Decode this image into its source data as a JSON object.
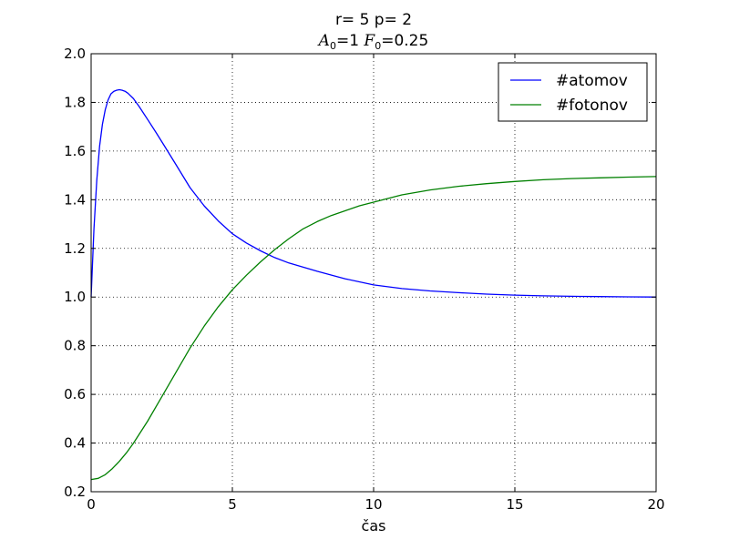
{
  "chart_data": {
    "type": "line",
    "title": "r= 5  p= 2",
    "subtitle": {
      "a_symbol": "A",
      "a_sub": "0",
      "a_rest": "=1 ",
      "f_symbol": "F",
      "f_sub": "0",
      "f_rest": "=0.25"
    },
    "xlabel": "čas",
    "ylabel": "",
    "xlim": [
      0,
      20
    ],
    "ylim": [
      0.2,
      2.0
    ],
    "x_ticks": [
      0,
      5,
      10,
      15,
      20
    ],
    "x_tick_labels": [
      "0",
      "5",
      "10",
      "15",
      "20"
    ],
    "y_ticks": [
      0.2,
      0.4,
      0.6,
      0.8,
      1.0,
      1.2,
      1.4,
      1.6,
      1.8,
      2.0
    ],
    "y_tick_labels": [
      "0.2",
      "0.4",
      "0.6",
      "0.8",
      "1.0",
      "1.2",
      "1.4",
      "1.6",
      "1.8",
      "2.0"
    ],
    "grid": true,
    "legend_position": "top-right",
    "series": [
      {
        "name": "#atomov",
        "color": "#0000ff",
        "x": [
          0,
          0.1,
          0.2,
          0.3,
          0.4,
          0.5,
          0.6,
          0.7,
          0.8,
          0.9,
          1.0,
          1.1,
          1.2,
          1.3,
          1.5,
          1.7,
          2.0,
          2.3,
          2.6,
          3.0,
          3.5,
          4.0,
          4.5,
          5.0,
          5.5,
          6.0,
          6.5,
          7.0,
          8.0,
          9.0,
          10.0,
          11.0,
          12.0,
          13.0,
          14.0,
          15.0,
          16.0,
          17.0,
          18.0,
          19.0,
          20.0
        ],
        "y": [
          1.0,
          1.28,
          1.48,
          1.62,
          1.71,
          1.77,
          1.81,
          1.835,
          1.845,
          1.85,
          1.852,
          1.85,
          1.846,
          1.838,
          1.815,
          1.783,
          1.73,
          1.676,
          1.62,
          1.545,
          1.45,
          1.375,
          1.313,
          1.26,
          1.222,
          1.19,
          1.162,
          1.14,
          1.106,
          1.075,
          1.05,
          1.035,
          1.025,
          1.018,
          1.012,
          1.008,
          1.005,
          1.003,
          1.002,
          1.001,
          1.0
        ]
      },
      {
        "name": "#fotonov",
        "color": "#008000",
        "x": [
          0,
          0.25,
          0.5,
          0.75,
          1.0,
          1.25,
          1.5,
          2.0,
          2.5,
          3.0,
          3.5,
          4.0,
          4.5,
          5.0,
          5.5,
          6.0,
          6.5,
          7.0,
          7.5,
          8.0,
          8.5,
          9.0,
          9.5,
          10.0,
          11.0,
          12.0,
          13.0,
          14.0,
          15.0,
          16.0,
          17.0,
          18.0,
          19.0,
          20.0
        ],
        "y": [
          0.25,
          0.255,
          0.27,
          0.295,
          0.325,
          0.36,
          0.4,
          0.49,
          0.59,
          0.69,
          0.79,
          0.88,
          0.96,
          1.03,
          1.09,
          1.145,
          1.195,
          1.24,
          1.28,
          1.31,
          1.335,
          1.355,
          1.375,
          1.39,
          1.42,
          1.44,
          1.455,
          1.466,
          1.475,
          1.482,
          1.487,
          1.49,
          1.493,
          1.495
        ]
      }
    ]
  }
}
